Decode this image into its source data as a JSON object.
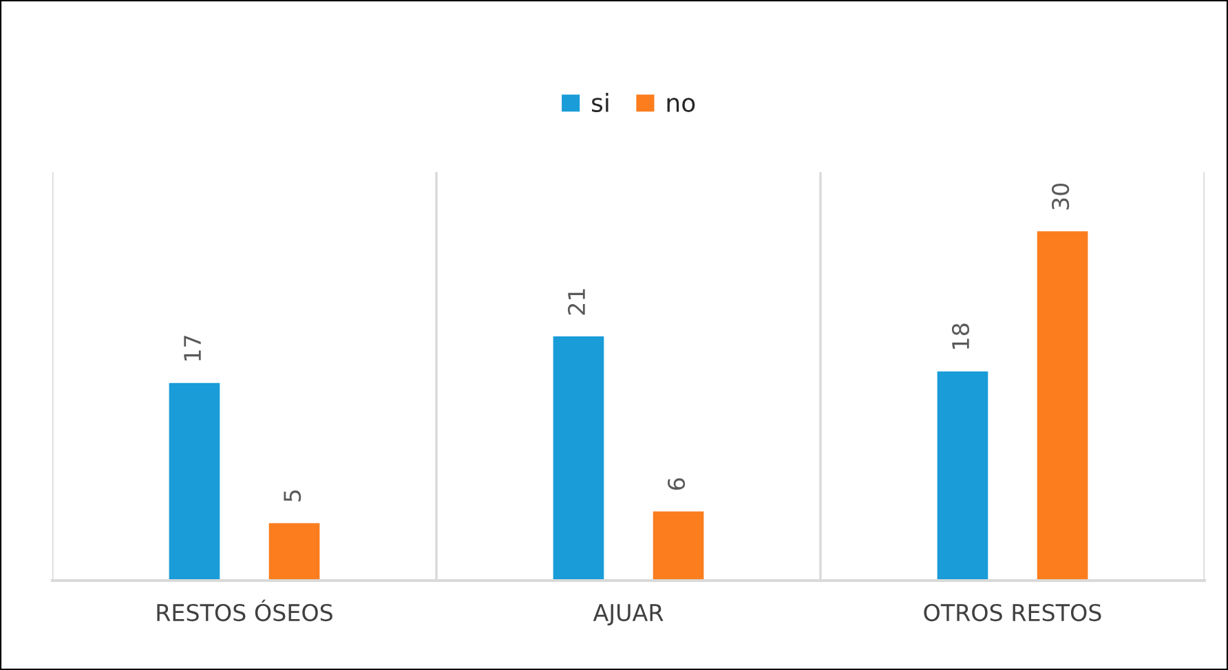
{
  "chart_data": {
    "type": "bar",
    "categories": [
      "RESTOS ÓSEOS",
      "AJUAR",
      "OTROS RESTOS"
    ],
    "series": [
      {
        "name": "si",
        "color": "#1a9cd8",
        "values": [
          17,
          21,
          18
        ]
      },
      {
        "name": "no",
        "color": "#fb7d1e",
        "values": [
          5,
          6,
          30
        ]
      }
    ],
    "ylim": [
      0,
      35
    ],
    "tick_labels": "x",
    "data_labels": true,
    "legend": "top",
    "grid": false
  }
}
